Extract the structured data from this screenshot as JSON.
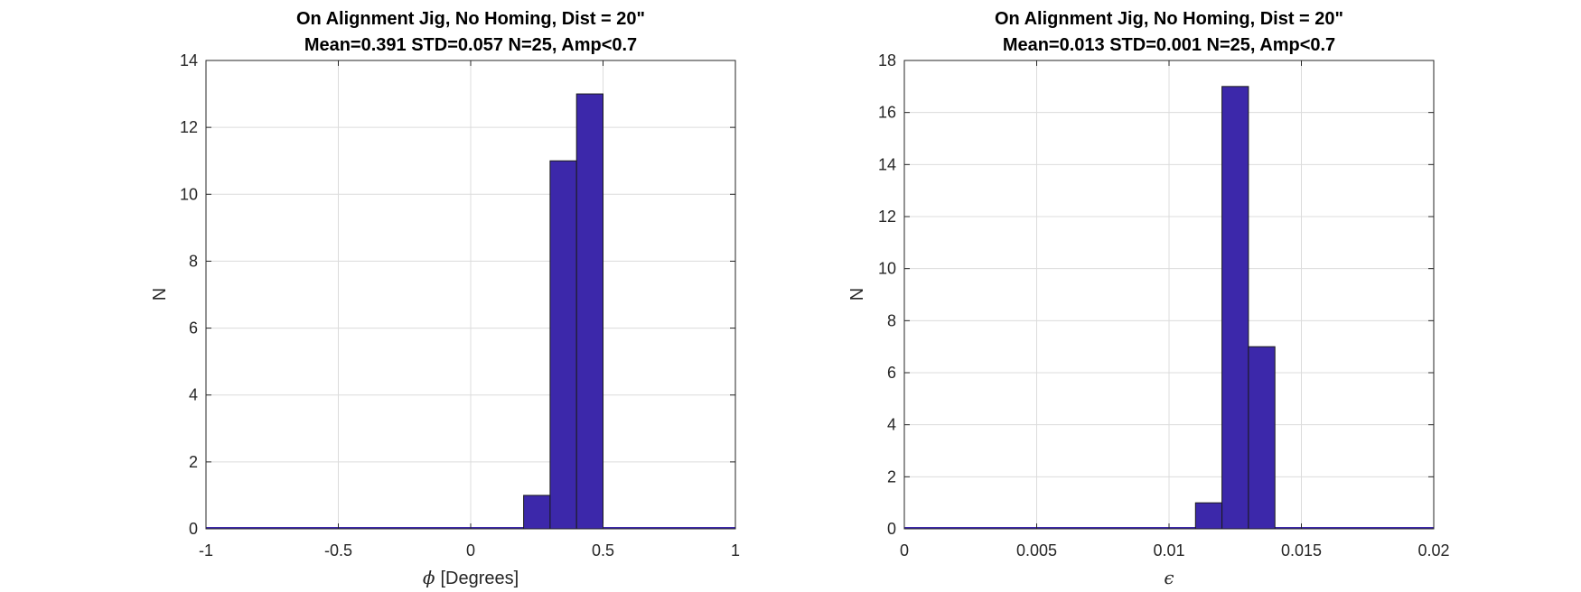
{
  "chart_data": [
    {
      "type": "bar",
      "title": "On Alignment Jig, No Homing, Dist = 20\"",
      "subtitle": "Mean=0.391 STD=0.057 N=25, Amp<0.7",
      "xlabel_symbol": "ϕ",
      "xlabel": "[Degrees]",
      "ylabel": "N",
      "xlim": [
        -1,
        1
      ],
      "ylim": [
        0,
        14
      ],
      "xticks": [
        -1,
        -0.5,
        0,
        0.5,
        1
      ],
      "xtick_labels": [
        "-1",
        "-0.5",
        "0",
        "0.5",
        "1"
      ],
      "yticks": [
        0,
        2,
        4,
        6,
        8,
        10,
        12,
        14
      ],
      "ytick_labels": [
        "0",
        "2",
        "4",
        "6",
        "8",
        "10",
        "12",
        "14"
      ],
      "grid": true,
      "bins": [
        [
          0.2,
          0.3
        ],
        [
          0.3,
          0.4
        ],
        [
          0.4,
          0.5
        ]
      ],
      "values": [
        1,
        11,
        13
      ]
    },
    {
      "type": "bar",
      "title": "On Alignment Jig, No Homing, Dist = 20\"",
      "subtitle": "Mean=0.013 STD=0.001 N=25, Amp<0.7",
      "xlabel_symbol": "ϵ",
      "xlabel": "",
      "ylabel": "N",
      "xlim": [
        0,
        0.02
      ],
      "ylim": [
        0,
        18
      ],
      "xticks": [
        0,
        0.005,
        0.01,
        0.015,
        0.02
      ],
      "xtick_labels": [
        "0",
        "0.005",
        "0.01",
        "0.015",
        "0.02"
      ],
      "yticks": [
        0,
        2,
        4,
        6,
        8,
        10,
        12,
        14,
        16,
        18
      ],
      "ytick_labels": [
        "0",
        "2",
        "4",
        "6",
        "8",
        "10",
        "12",
        "14",
        "16",
        "18"
      ],
      "grid": true,
      "bins": [
        [
          0.011,
          0.012
        ],
        [
          0.012,
          0.013
        ],
        [
          0.013,
          0.014
        ]
      ],
      "values": [
        1,
        17,
        7
      ]
    }
  ],
  "colors": {
    "bar_fill": "#3c28aa",
    "bar_edge": "#1a1a1a",
    "grid": "#dcdcdc",
    "axis": "#262626"
  }
}
